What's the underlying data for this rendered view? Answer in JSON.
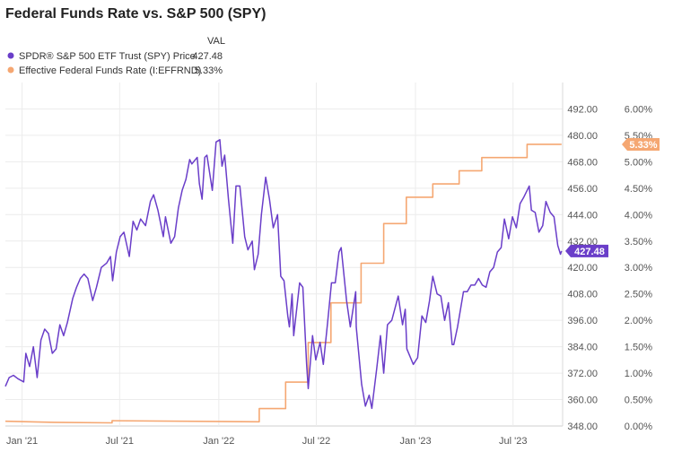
{
  "chart_data": {
    "type": "line",
    "title": "Federal Funds Rate vs. S&P 500 (SPY)",
    "legend_header": "VAL",
    "legend_placement": "top-left",
    "grid": true,
    "x_range": [
      "2020-12-01",
      "2023-10-01"
    ],
    "x_ticks": [
      "Jan '21",
      "Jul '21",
      "Jan '22",
      "Jul '22",
      "Jan '23",
      "Jul '23"
    ],
    "y_left": {
      "range": [
        348,
        504
      ],
      "ticks": [
        "348.00",
        "360.00",
        "372.00",
        "384.00",
        "396.00",
        "408.00",
        "420.00",
        "432.00",
        "444.00",
        "456.00",
        "468.00",
        "480.00",
        "492.00"
      ]
    },
    "y_right": {
      "range": [
        0,
        6.5
      ],
      "ticks": [
        "0.00%",
        "0.50%",
        "1.00%",
        "1.50%",
        "2.00%",
        "2.50%",
        "3.00%",
        "3.50%",
        "4.00%",
        "4.50%",
        "5.00%",
        "5.50%",
        "6.00%"
      ]
    },
    "series": [
      {
        "name": "SPDR® S&P 500 ETF Trust (SPY) Price",
        "value_label": "427.48",
        "last_value": 427.48,
        "axis": "left",
        "color": "#6a3ec9",
        "points": [
          [
            "2020-12-01",
            366.0
          ],
          [
            "2020-12-08",
            370.0
          ],
          [
            "2020-12-16",
            371.0
          ],
          [
            "2020-12-24",
            369.5
          ],
          [
            "2021-01-04",
            368.0
          ],
          [
            "2021-01-08",
            381.0
          ],
          [
            "2021-01-15",
            375.0
          ],
          [
            "2021-01-22",
            384.0
          ],
          [
            "2021-01-29",
            370.0
          ],
          [
            "2021-02-05",
            387.0
          ],
          [
            "2021-02-12",
            392.0
          ],
          [
            "2021-02-19",
            390.0
          ],
          [
            "2021-02-26",
            381.0
          ],
          [
            "2021-03-05",
            383.0
          ],
          [
            "2021-03-12",
            394.0
          ],
          [
            "2021-03-19",
            389.0
          ],
          [
            "2021-03-26",
            395.0
          ],
          [
            "2021-04-05",
            406.0
          ],
          [
            "2021-04-12",
            411.0
          ],
          [
            "2021-04-19",
            415.0
          ],
          [
            "2021-04-26",
            417.0
          ],
          [
            "2021-05-03",
            415.0
          ],
          [
            "2021-05-12",
            405.0
          ],
          [
            "2021-05-19",
            411.0
          ],
          [
            "2021-05-28",
            420.0
          ],
          [
            "2021-06-07",
            422.0
          ],
          [
            "2021-06-14",
            425.0
          ],
          [
            "2021-06-18",
            414.0
          ],
          [
            "2021-06-25",
            427.0
          ],
          [
            "2021-07-02",
            434.0
          ],
          [
            "2021-07-09",
            436.0
          ],
          [
            "2021-07-19",
            425.0
          ],
          [
            "2021-07-26",
            441.0
          ],
          [
            "2021-08-02",
            437.0
          ],
          [
            "2021-08-09",
            442.0
          ],
          [
            "2021-08-18",
            439.0
          ],
          [
            "2021-08-27",
            450.0
          ],
          [
            "2021-09-02",
            453.0
          ],
          [
            "2021-09-10",
            446.0
          ],
          [
            "2021-09-20",
            434.0
          ],
          [
            "2021-09-24",
            443.0
          ],
          [
            "2021-10-04",
            431.0
          ],
          [
            "2021-10-11",
            434.0
          ],
          [
            "2021-10-18",
            447.0
          ],
          [
            "2021-10-25",
            455.0
          ],
          [
            "2021-11-01",
            460.0
          ],
          [
            "2021-11-08",
            469.0
          ],
          [
            "2021-11-12",
            467.0
          ],
          [
            "2021-11-22",
            470.0
          ],
          [
            "2021-11-26",
            458.0
          ],
          [
            "2021-12-01",
            451.0
          ],
          [
            "2021-12-06",
            470.0
          ],
          [
            "2021-12-10",
            471.0
          ],
          [
            "2021-12-20",
            455.0
          ],
          [
            "2021-12-27",
            477.0
          ],
          [
            "2022-01-03",
            478.0
          ],
          [
            "2022-01-07",
            466.0
          ],
          [
            "2022-01-12",
            471.0
          ],
          [
            "2022-01-19",
            451.0
          ],
          [
            "2022-01-27",
            431.0
          ],
          [
            "2022-02-02",
            457.0
          ],
          [
            "2022-02-09",
            457.0
          ],
          [
            "2022-02-18",
            434.0
          ],
          [
            "2022-02-24",
            428.0
          ],
          [
            "2022-03-04",
            432.0
          ],
          [
            "2022-03-08",
            419.0
          ],
          [
            "2022-03-15",
            426.0
          ],
          [
            "2022-03-21",
            444.0
          ],
          [
            "2022-03-29",
            461.0
          ],
          [
            "2022-04-05",
            451.0
          ],
          [
            "2022-04-12",
            438.0
          ],
          [
            "2022-04-20",
            444.0
          ],
          [
            "2022-04-26",
            416.0
          ],
          [
            "2022-05-02",
            414.0
          ],
          [
            "2022-05-09",
            398.0
          ],
          [
            "2022-05-12",
            393.0
          ],
          [
            "2022-05-17",
            408.0
          ],
          [
            "2022-05-20",
            389.0
          ],
          [
            "2022-05-31",
            413.0
          ],
          [
            "2022-06-06",
            411.0
          ],
          [
            "2022-06-13",
            376.0
          ],
          [
            "2022-06-16",
            365.0
          ],
          [
            "2022-06-24",
            389.0
          ],
          [
            "2022-06-30",
            378.0
          ],
          [
            "2022-07-08",
            386.0
          ],
          [
            "2022-07-14",
            376.0
          ],
          [
            "2022-07-22",
            395.0
          ],
          [
            "2022-07-29",
            413.0
          ],
          [
            "2022-08-05",
            413.0
          ],
          [
            "2022-08-12",
            427.0
          ],
          [
            "2022-08-16",
            429.0
          ],
          [
            "2022-08-26",
            405.0
          ],
          [
            "2022-09-02",
            393.0
          ],
          [
            "2022-09-12",
            409.0
          ],
          [
            "2022-09-13",
            393.0
          ],
          [
            "2022-09-23",
            367.0
          ],
          [
            "2022-09-30",
            357.0
          ],
          [
            "2022-10-07",
            362.0
          ],
          [
            "2022-10-12",
            356.0
          ],
          [
            "2022-10-21",
            374.0
          ],
          [
            "2022-10-28",
            389.0
          ],
          [
            "2022-11-03",
            372.0
          ],
          [
            "2022-11-10",
            394.0
          ],
          [
            "2022-11-18",
            396.0
          ],
          [
            "2022-11-30",
            407.0
          ],
          [
            "2022-12-08",
            394.0
          ],
          [
            "2022-12-13",
            401.0
          ],
          [
            "2022-12-16",
            383.0
          ],
          [
            "2022-12-28",
            376.0
          ],
          [
            "2023-01-05",
            379.0
          ],
          [
            "2023-01-13",
            398.0
          ],
          [
            "2023-01-20",
            395.0
          ],
          [
            "2023-01-27",
            405.0
          ],
          [
            "2023-02-02",
            416.0
          ],
          [
            "2023-02-10",
            408.0
          ],
          [
            "2023-02-17",
            407.0
          ],
          [
            "2023-02-24",
            396.0
          ],
          [
            "2023-03-03",
            404.0
          ],
          [
            "2023-03-10",
            385.0
          ],
          [
            "2023-03-13",
            385.0
          ],
          [
            "2023-03-20",
            393.0
          ],
          [
            "2023-03-31",
            409.0
          ],
          [
            "2023-04-07",
            409.0
          ],
          [
            "2023-04-14",
            412.0
          ],
          [
            "2023-04-21",
            412.0
          ],
          [
            "2023-04-28",
            415.0
          ],
          [
            "2023-05-05",
            412.0
          ],
          [
            "2023-05-12",
            411.0
          ],
          [
            "2023-05-19",
            418.0
          ],
          [
            "2023-05-26",
            420.0
          ],
          [
            "2023-06-02",
            427.0
          ],
          [
            "2023-06-09",
            429.0
          ],
          [
            "2023-06-15",
            442.0
          ],
          [
            "2023-06-23",
            433.0
          ],
          [
            "2023-06-30",
            443.0
          ],
          [
            "2023-07-07",
            438.0
          ],
          [
            "2023-07-14",
            449.0
          ],
          [
            "2023-07-21",
            452.0
          ],
          [
            "2023-07-31",
            457.0
          ],
          [
            "2023-08-04",
            446.0
          ],
          [
            "2023-08-11",
            445.0
          ],
          [
            "2023-08-18",
            436.0
          ],
          [
            "2023-08-25",
            439.0
          ],
          [
            "2023-08-31",
            450.0
          ],
          [
            "2023-09-08",
            445.0
          ],
          [
            "2023-09-15",
            443.0
          ],
          [
            "2023-09-22",
            430.0
          ],
          [
            "2023-09-27",
            426.0
          ],
          [
            "2023-09-29",
            427.48
          ]
        ]
      },
      {
        "name": "Effective Federal Funds Rate (I:EFFRND)",
        "value_label": "5.33%",
        "last_value": 5.33,
        "axis": "right",
        "color": "#f5a772",
        "points": [
          [
            "2020-12-01",
            0.09
          ],
          [
            "2021-03-01",
            0.07
          ],
          [
            "2021-06-17",
            0.06
          ],
          [
            "2021-06-17",
            0.1
          ],
          [
            "2022-03-17",
            0.08
          ],
          [
            "2022-03-17",
            0.33
          ],
          [
            "2022-05-05",
            0.33
          ],
          [
            "2022-05-05",
            0.83
          ],
          [
            "2022-06-16",
            0.83
          ],
          [
            "2022-06-16",
            1.58
          ],
          [
            "2022-07-28",
            1.58
          ],
          [
            "2022-07-28",
            2.33
          ],
          [
            "2022-09-22",
            2.33
          ],
          [
            "2022-09-22",
            3.08
          ],
          [
            "2022-11-03",
            3.08
          ],
          [
            "2022-11-03",
            3.83
          ],
          [
            "2022-12-15",
            3.83
          ],
          [
            "2022-12-15",
            4.33
          ],
          [
            "2023-02-02",
            4.33
          ],
          [
            "2023-02-02",
            4.58
          ],
          [
            "2023-03-23",
            4.58
          ],
          [
            "2023-03-23",
            4.83
          ],
          [
            "2023-05-04",
            4.83
          ],
          [
            "2023-05-04",
            5.08
          ],
          [
            "2023-07-27",
            5.08
          ],
          [
            "2023-07-27",
            5.33
          ],
          [
            "2023-09-29",
            5.33
          ]
        ]
      }
    ]
  }
}
